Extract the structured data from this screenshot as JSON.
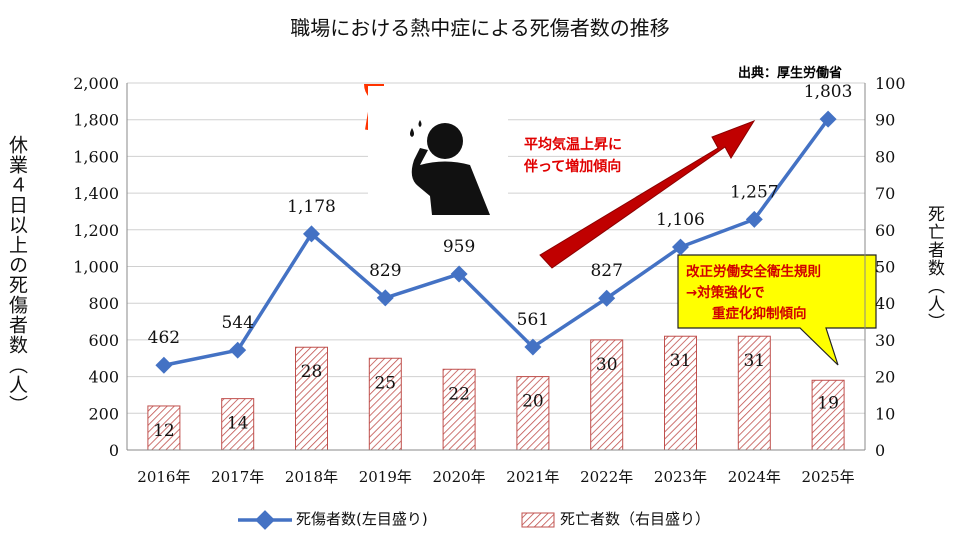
{
  "chart_data": {
    "type": "bar+line",
    "title": "職場における熱中症による死傷者数の推移",
    "source": "出典：厚生労働省",
    "categories": [
      "2016年",
      "2017年",
      "2018年",
      "2019年",
      "2020年",
      "2021年",
      "2022年",
      "2023年",
      "2024年",
      "2025年"
    ],
    "series": [
      {
        "name": "死傷者数(左目盛り)",
        "kind": "line",
        "axis": "left",
        "values": [
          462,
          544,
          1178,
          829,
          959,
          561,
          827,
          1106,
          1257,
          1803
        ],
        "labels": [
          "462",
          "544",
          "1,178",
          "829",
          "959",
          "561",
          "827",
          "1,106",
          "1,257",
          "1,803"
        ],
        "color": "#4472c4"
      },
      {
        "name": "死亡者数（右目盛り）",
        "kind": "bar",
        "axis": "right",
        "values": [
          12,
          14,
          28,
          25,
          22,
          20,
          30,
          31,
          31,
          19
        ],
        "labels": [
          "12",
          "14",
          "28",
          "25",
          "22",
          "20",
          "30",
          "31",
          "31",
          "19"
        ],
        "color": "#c0504d"
      }
    ],
    "ylabel_left": "休業４日以上の死傷者数（人）",
    "ylabel_right": "死亡者数（人）",
    "ylim_left": [
      0,
      2000
    ],
    "ylim_right": [
      0,
      100
    ],
    "yticks_left": [
      "0",
      "200",
      "400",
      "600",
      "800",
      "1,000",
      "1,200",
      "1,400",
      "1,600",
      "1,800",
      "2,000"
    ],
    "yticks_right": [
      "0",
      "10",
      "20",
      "30",
      "40",
      "50",
      "60",
      "70",
      "80",
      "90",
      "100"
    ],
    "grid": true,
    "legend_position": "bottom",
    "annotations": {
      "trend": [
        "平均気温上昇に",
        "伴って増加傾向"
      ],
      "callout": [
        "改正労働安全衛生規則",
        "→対策強化で",
        "重症化抑制傾向"
      ]
    },
    "colors": {
      "arrow": "#c00000",
      "callout_fill": "#ffff00",
      "sun": "#ff3300"
    }
  }
}
